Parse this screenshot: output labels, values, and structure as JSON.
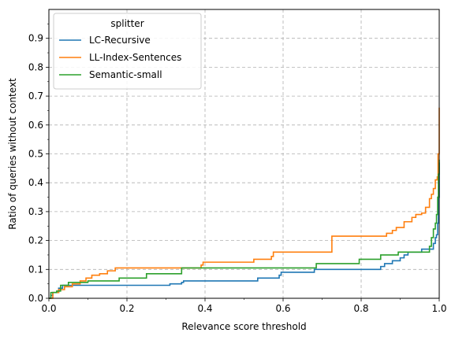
{
  "chart_data": {
    "type": "line",
    "subtype": "step",
    "title": "",
    "xlabel": "Relevance score threshold",
    "ylabel": "Ratio of queries without context",
    "xlim": [
      0.0,
      1.0
    ],
    "ylim": [
      0.0,
      1.0
    ],
    "x_ticks": [
      "0.0",
      "0.2",
      "0.4",
      "0.6",
      "0.8",
      "1.0"
    ],
    "y_ticks": [
      "0.0",
      "0.1",
      "0.2",
      "0.3",
      "0.4",
      "0.5",
      "0.6",
      "0.7",
      "0.8",
      "0.9"
    ],
    "grid": true,
    "legend": {
      "title": "splitter",
      "placement": "top-left"
    },
    "series": [
      {
        "name": "LC-Recursive",
        "color": "#1f77b4",
        "points": [
          [
            0.0,
            0.0
          ],
          [
            0.005,
            0.01
          ],
          [
            0.01,
            0.02
          ],
          [
            0.025,
            0.035
          ],
          [
            0.035,
            0.045
          ],
          [
            0.3,
            0.045
          ],
          [
            0.31,
            0.05
          ],
          [
            0.34,
            0.055
          ],
          [
            0.345,
            0.06
          ],
          [
            0.53,
            0.06
          ],
          [
            0.535,
            0.07
          ],
          [
            0.58,
            0.07
          ],
          [
            0.59,
            0.08
          ],
          [
            0.595,
            0.09
          ],
          [
            0.67,
            0.09
          ],
          [
            0.68,
            0.1
          ],
          [
            0.845,
            0.1
          ],
          [
            0.85,
            0.11
          ],
          [
            0.86,
            0.12
          ],
          [
            0.88,
            0.13
          ],
          [
            0.9,
            0.14
          ],
          [
            0.91,
            0.15
          ],
          [
            0.92,
            0.16
          ],
          [
            0.95,
            0.16
          ],
          [
            0.955,
            0.17
          ],
          [
            0.98,
            0.17
          ],
          [
            0.985,
            0.19
          ],
          [
            0.99,
            0.21
          ],
          [
            0.993,
            0.22
          ],
          [
            0.996,
            0.26
          ],
          [
            0.998,
            0.35
          ],
          [
            1.0,
            0.47
          ]
        ]
      },
      {
        "name": "LL-Index-Sentences",
        "color": "#ff7f0e",
        "points": [
          [
            0.0,
            0.0
          ],
          [
            0.01,
            0.02
          ],
          [
            0.025,
            0.03
          ],
          [
            0.04,
            0.04
          ],
          [
            0.06,
            0.05
          ],
          [
            0.08,
            0.06
          ],
          [
            0.095,
            0.07
          ],
          [
            0.11,
            0.08
          ],
          [
            0.13,
            0.085
          ],
          [
            0.15,
            0.095
          ],
          [
            0.17,
            0.105
          ],
          [
            0.37,
            0.105
          ],
          [
            0.39,
            0.115
          ],
          [
            0.395,
            0.125
          ],
          [
            0.52,
            0.125
          ],
          [
            0.525,
            0.135
          ],
          [
            0.57,
            0.145
          ],
          [
            0.575,
            0.16
          ],
          [
            0.72,
            0.16
          ],
          [
            0.725,
            0.215
          ],
          [
            0.86,
            0.215
          ],
          [
            0.865,
            0.225
          ],
          [
            0.88,
            0.235
          ],
          [
            0.89,
            0.245
          ],
          [
            0.9,
            0.245
          ],
          [
            0.91,
            0.265
          ],
          [
            0.93,
            0.28
          ],
          [
            0.94,
            0.29
          ],
          [
            0.955,
            0.295
          ],
          [
            0.965,
            0.315
          ],
          [
            0.975,
            0.345
          ],
          [
            0.98,
            0.36
          ],
          [
            0.985,
            0.38
          ],
          [
            0.99,
            0.41
          ],
          [
            0.995,
            0.42
          ],
          [
            0.997,
            0.5
          ],
          [
            1.0,
            0.66
          ]
        ]
      },
      {
        "name": "Semantic-small",
        "color": "#2ca02c",
        "points": [
          [
            0.0,
            0.0
          ],
          [
            0.005,
            0.02
          ],
          [
            0.02,
            0.025
          ],
          [
            0.03,
            0.045
          ],
          [
            0.05,
            0.055
          ],
          [
            0.1,
            0.06
          ],
          [
            0.18,
            0.07
          ],
          [
            0.245,
            0.07
          ],
          [
            0.25,
            0.085
          ],
          [
            0.335,
            0.085
          ],
          [
            0.34,
            0.105
          ],
          [
            0.68,
            0.105
          ],
          [
            0.685,
            0.12
          ],
          [
            0.79,
            0.12
          ],
          [
            0.795,
            0.135
          ],
          [
            0.85,
            0.15
          ],
          [
            0.89,
            0.15
          ],
          [
            0.895,
            0.16
          ],
          [
            0.97,
            0.16
          ],
          [
            0.975,
            0.18
          ],
          [
            0.98,
            0.21
          ],
          [
            0.985,
            0.24
          ],
          [
            0.99,
            0.26
          ],
          [
            0.993,
            0.29
          ],
          [
            0.996,
            0.35
          ],
          [
            0.998,
            0.43
          ],
          [
            1.0,
            0.48
          ]
        ]
      }
    ]
  }
}
